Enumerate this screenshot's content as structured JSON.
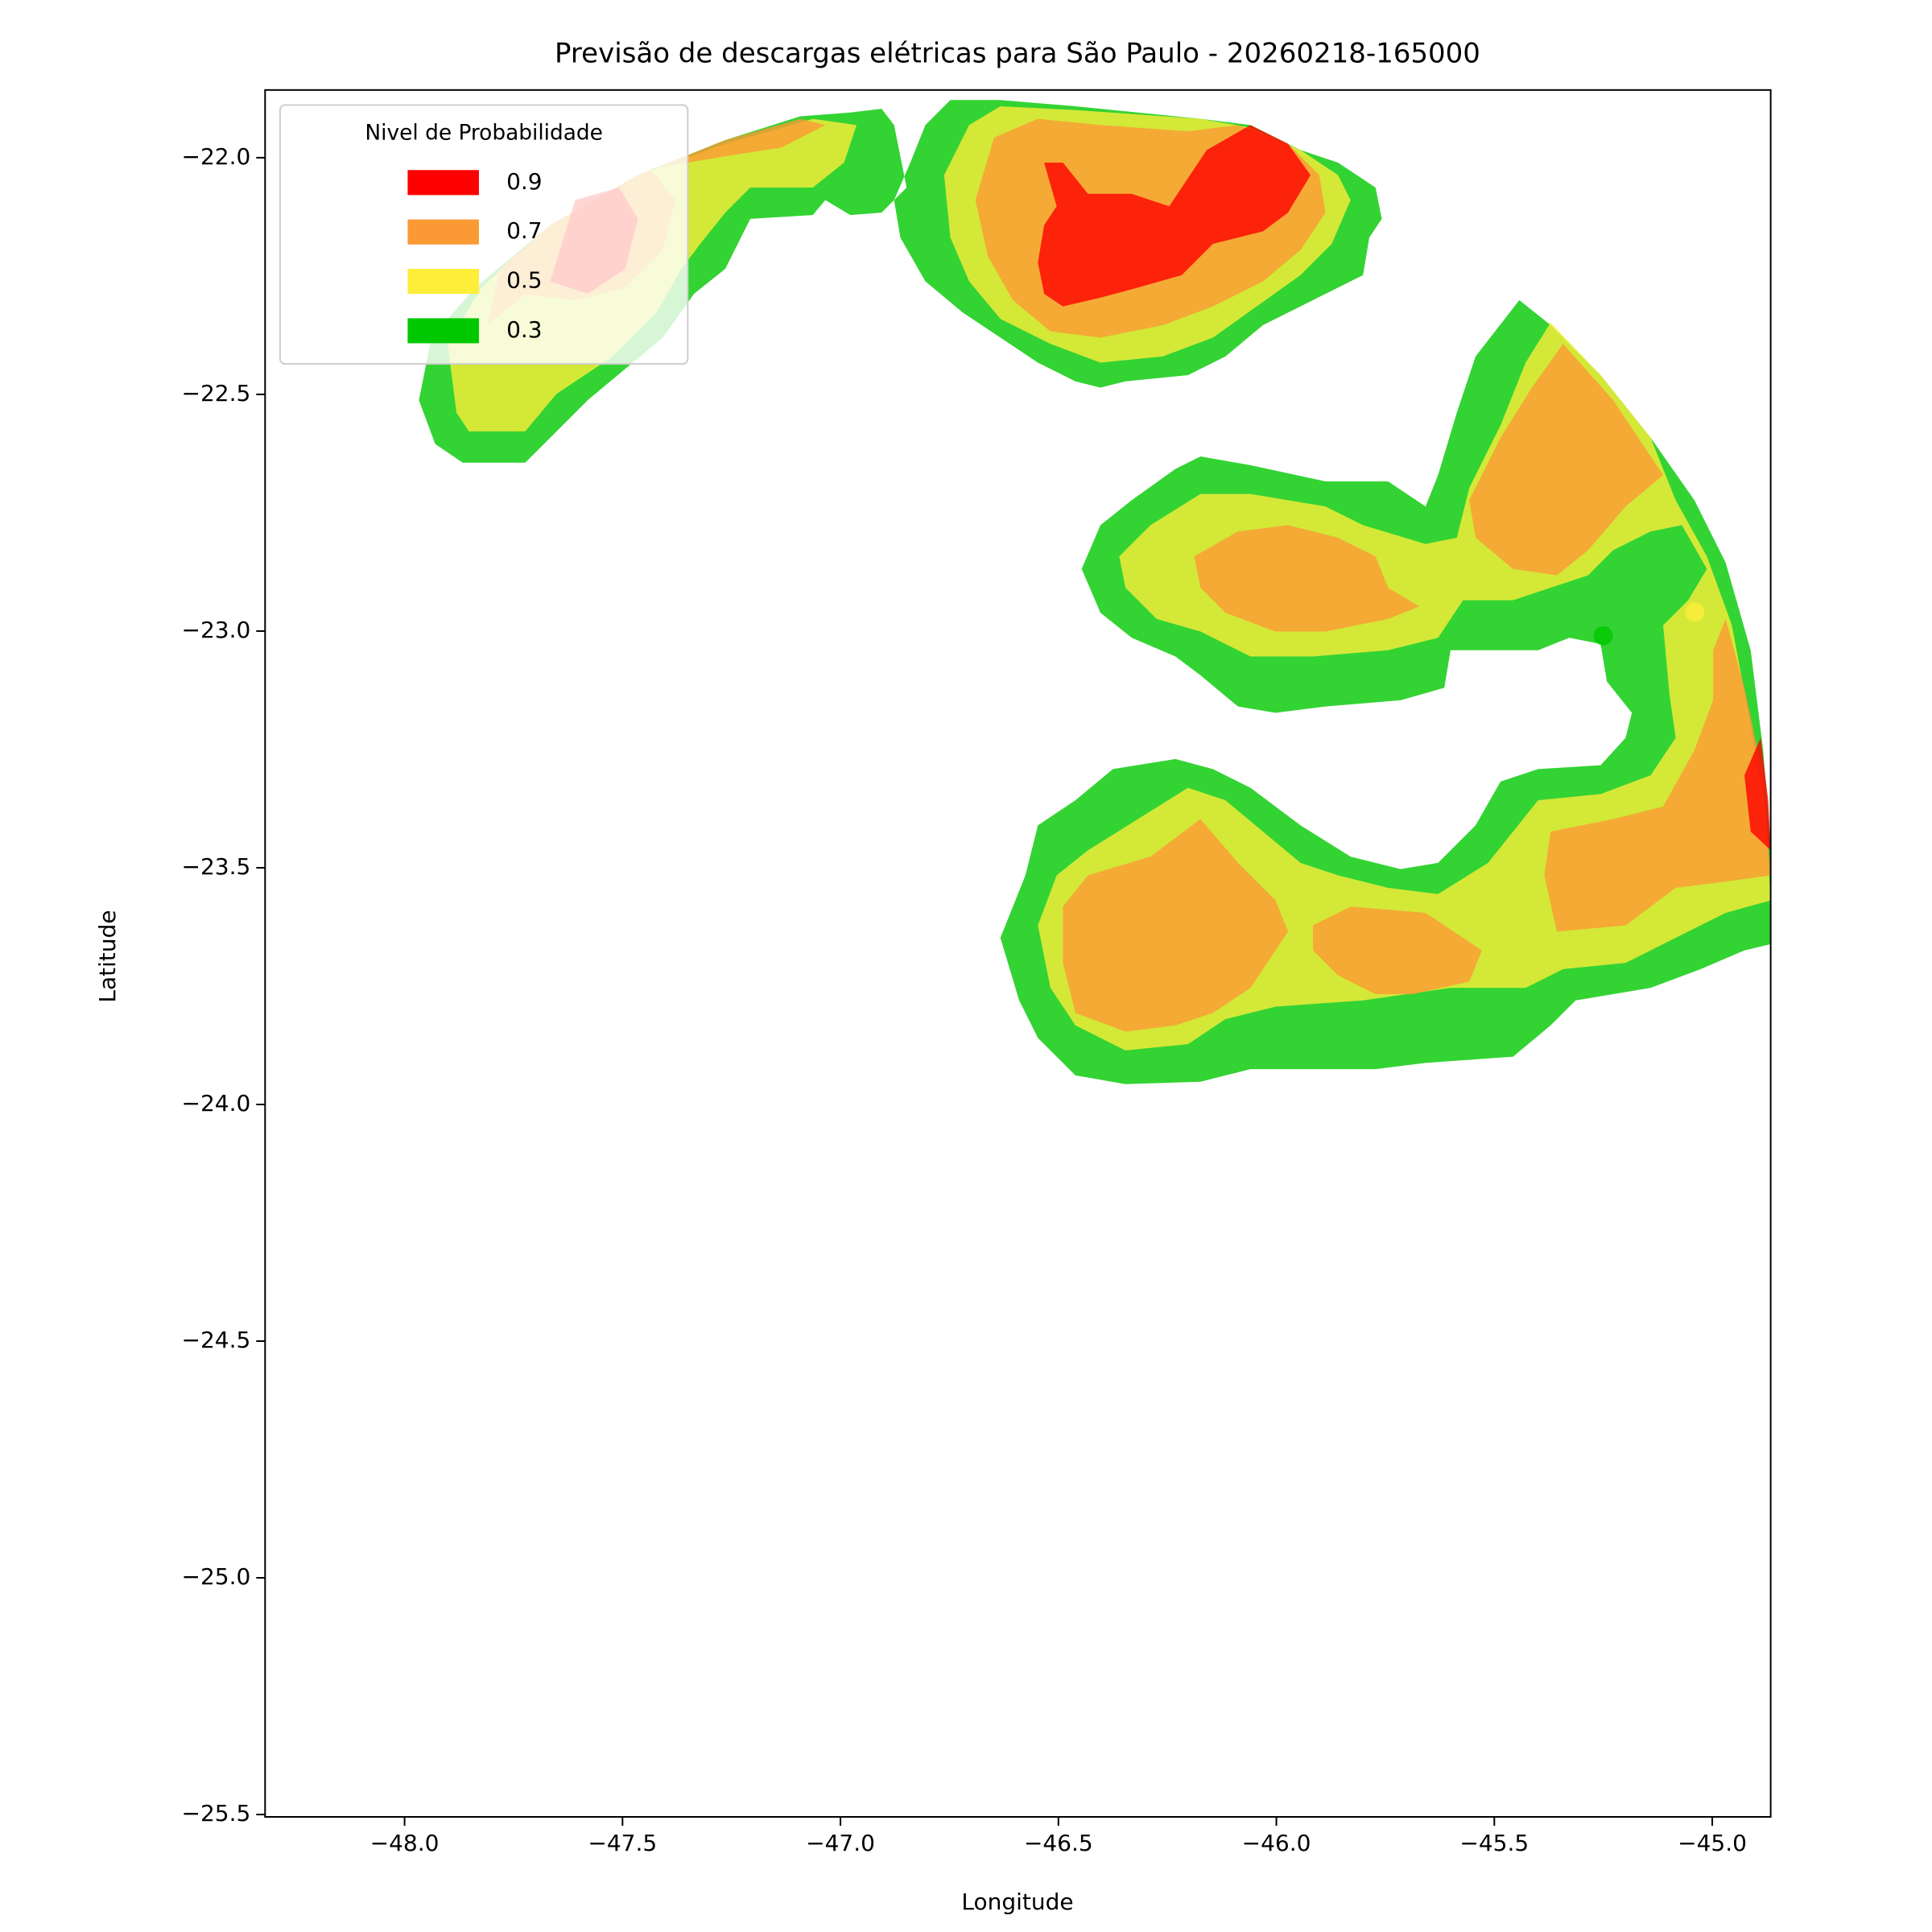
{
  "chart_data": {
    "type": "contour",
    "title": "Previsão de descargas elétricas para São Paulo - 20260218-165000",
    "x_label": "Longitude",
    "y_label": "Latitude",
    "legend_title": "Nivel de Probabilidade",
    "legend_position": "upper left",
    "levels": [
      0.9,
      0.7,
      0.5,
      0.3
    ],
    "colors": [
      "#ff0000",
      "#fb9a35",
      "#fdee3a",
      "#00c800"
    ],
    "points": {
      "x": [
        -45.25,
        -45.04
      ],
      "y": [
        -23.01,
        -22.96
      ],
      "colors": [
        "#00c800",
        "#fdee3a"
      ]
    },
    "xlim": [
      -48.32,
      -44.866
    ],
    "ylim": [
      -25.505,
      -21.857
    ],
    "xticks": [
      {
        "value": -48,
        "label": "−48.0"
      },
      {
        "value": -47.5,
        "label": "−47.5"
      },
      {
        "value": -47,
        "label": "−47.0"
      },
      {
        "value": -46.5,
        "label": "−46.5"
      },
      {
        "value": -46,
        "label": "−46.0"
      },
      {
        "value": -45.5,
        "label": "−45.5"
      },
      {
        "value": -45,
        "label": "−45.0"
      }
    ],
    "yticks": [
      {
        "value": -22,
        "label": "−22.0"
      },
      {
        "value": -22.5,
        "label": "−22.5"
      },
      {
        "value": -23,
        "label": "−23.0"
      },
      {
        "value": -23.5,
        "label": "−23.5"
      },
      {
        "value": -24,
        "label": "−24.0"
      },
      {
        "value": -24.5,
        "label": "−24.5"
      },
      {
        "value": -25,
        "label": "−25.0"
      },
      {
        "value": -25.5,
        "label": "−25.5"
      }
    ]
  }
}
